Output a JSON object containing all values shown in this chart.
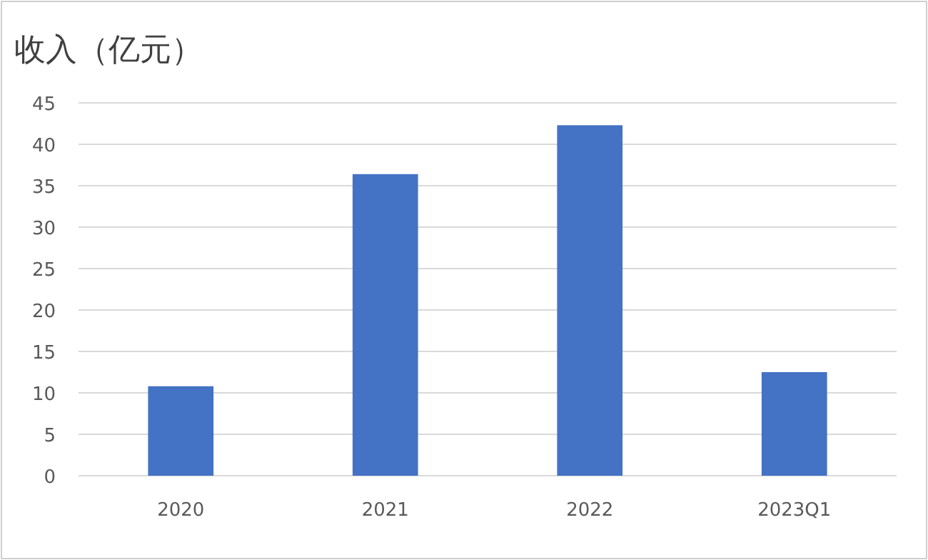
{
  "chart_data": {
    "type": "bar",
    "title": "收入（亿元）",
    "categories": [
      "2020",
      "2021",
      "2022",
      "2023Q1"
    ],
    "values": [
      10.8,
      36.4,
      42.3,
      12.5
    ],
    "color": "#4472c4",
    "ylim": [
      0,
      45
    ],
    "yticks": [
      0,
      5,
      10,
      15,
      20,
      25,
      30,
      35,
      40,
      45
    ],
    "grid": "y"
  }
}
